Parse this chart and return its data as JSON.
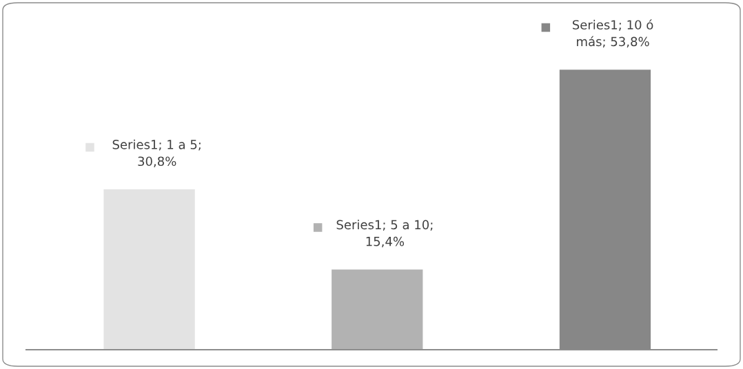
{
  "chart_data": {
    "type": "bar",
    "categories": [
      null,
      null,
      null
    ],
    "values": [
      30.8,
      15.4,
      53.8
    ],
    "colors": [
      "#e3e3e3",
      "#b2b2b2",
      "#878787"
    ],
    "value_labels": [
      "Series1; 1 a 5;\n30,8%",
      "Series1; 5 a 10;\n15,4%",
      "Series1; 10 ó\nmás; 53,8%"
    ],
    "grid": false,
    "legend": false
  }
}
